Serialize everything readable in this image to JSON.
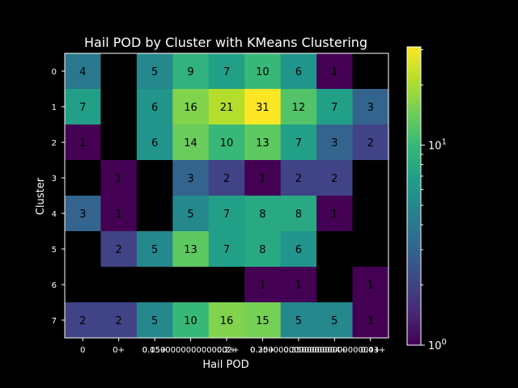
{
  "chart_data": {
    "type": "heatmap",
    "title": "Hail POD by Cluster with KMeans Clustering",
    "xlabel": "Hail POD",
    "ylabel": "Cluster",
    "x_tick_labels": [
      "0",
      "0+",
      "0.05+",
      "0.15+",
      "0.2+",
      "0.25+",
      "0.3+",
      "0.35+",
      "0.4+"
    ],
    "x_tick_labels_rendered": [
      "0",
      "0+",
      "0.05+",
      "0.1500000000000002+",
      "0.2+",
      "0.25+",
      "0.3000000000000004+",
      "0.35000000000000003+",
      "0.4+"
    ],
    "y_tick_labels": [
      "0",
      "1",
      "2",
      "3",
      "4",
      "5",
      "6",
      "7"
    ],
    "values": [
      [
        4,
        null,
        5,
        9,
        7,
        10,
        6,
        1,
        null
      ],
      [
        7,
        null,
        6,
        16,
        21,
        31,
        12,
        7,
        3
      ],
      [
        1,
        null,
        6,
        14,
        10,
        13,
        7,
        3,
        2
      ],
      [
        null,
        1,
        null,
        3,
        2,
        1,
        2,
        2,
        null
      ],
      [
        3,
        1,
        null,
        5,
        7,
        8,
        8,
        1,
        null
      ],
      [
        null,
        2,
        5,
        13,
        7,
        8,
        6,
        null,
        null
      ],
      [
        null,
        null,
        null,
        null,
        null,
        1,
        1,
        null,
        1
      ],
      [
        2,
        2,
        5,
        10,
        16,
        15,
        5,
        5,
        1
      ]
    ],
    "colorbar": {
      "scale": "log",
      "colormap": "viridis",
      "range": [
        1,
        31
      ],
      "tick_labels": [
        {
          "base": "10",
          "exp": "0",
          "value": 1
        },
        {
          "base": "10",
          "exp": "1",
          "value": 10
        }
      ]
    },
    "empty_cell_color": "#000000",
    "background": "#000000",
    "text_color": "#ffffff"
  }
}
